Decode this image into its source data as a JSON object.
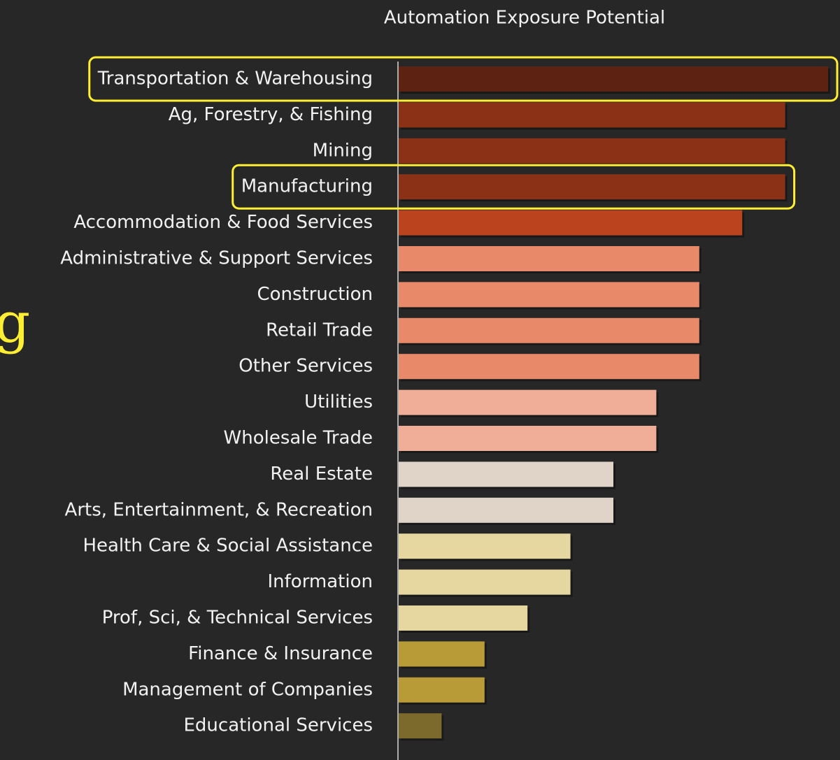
{
  "chart_data": {
    "type": "barh",
    "title": "Automation Exposure Potential",
    "side_text": "g",
    "categories": [
      "Transportation & Warehousing",
      "Ag, Forestry, & Fishing",
      "Mining",
      "Manufacturing",
      "Accommodation & Food Services",
      "Administrative & Support Services",
      "Construction",
      "Retail Trade",
      "Other Services",
      "Utilities",
      "Wholesale Trade",
      "Real Estate",
      "Arts, Entertainment, & Recreation",
      "Health Care & Social Assistance",
      "Information",
      "Prof, Sci, & Technical Services",
      "Finance & Insurance",
      "Management of Companies",
      "Educational Services"
    ],
    "values": [
      10,
      9,
      9,
      9,
      8,
      7,
      7,
      7,
      7,
      6,
      6,
      5,
      5,
      4,
      4,
      3,
      2,
      2,
      1
    ],
    "colors": [
      "#5e2212",
      "#8b3216",
      "#8b3216",
      "#8b3216",
      "#bb441e",
      "#e8896a",
      "#e8896a",
      "#e8896a",
      "#e8896a",
      "#f0ae98",
      "#f0ae98",
      "#dfd4c7",
      "#dfd4c7",
      "#e6d7a1",
      "#e6d7a1",
      "#e6d7a1",
      "#b89a37",
      "#b89a37",
      "#7c6a2c"
    ],
    "xlim": [
      0,
      10
    ],
    "highlight": [
      0,
      3
    ],
    "highlight_color": "#ffee33"
  }
}
